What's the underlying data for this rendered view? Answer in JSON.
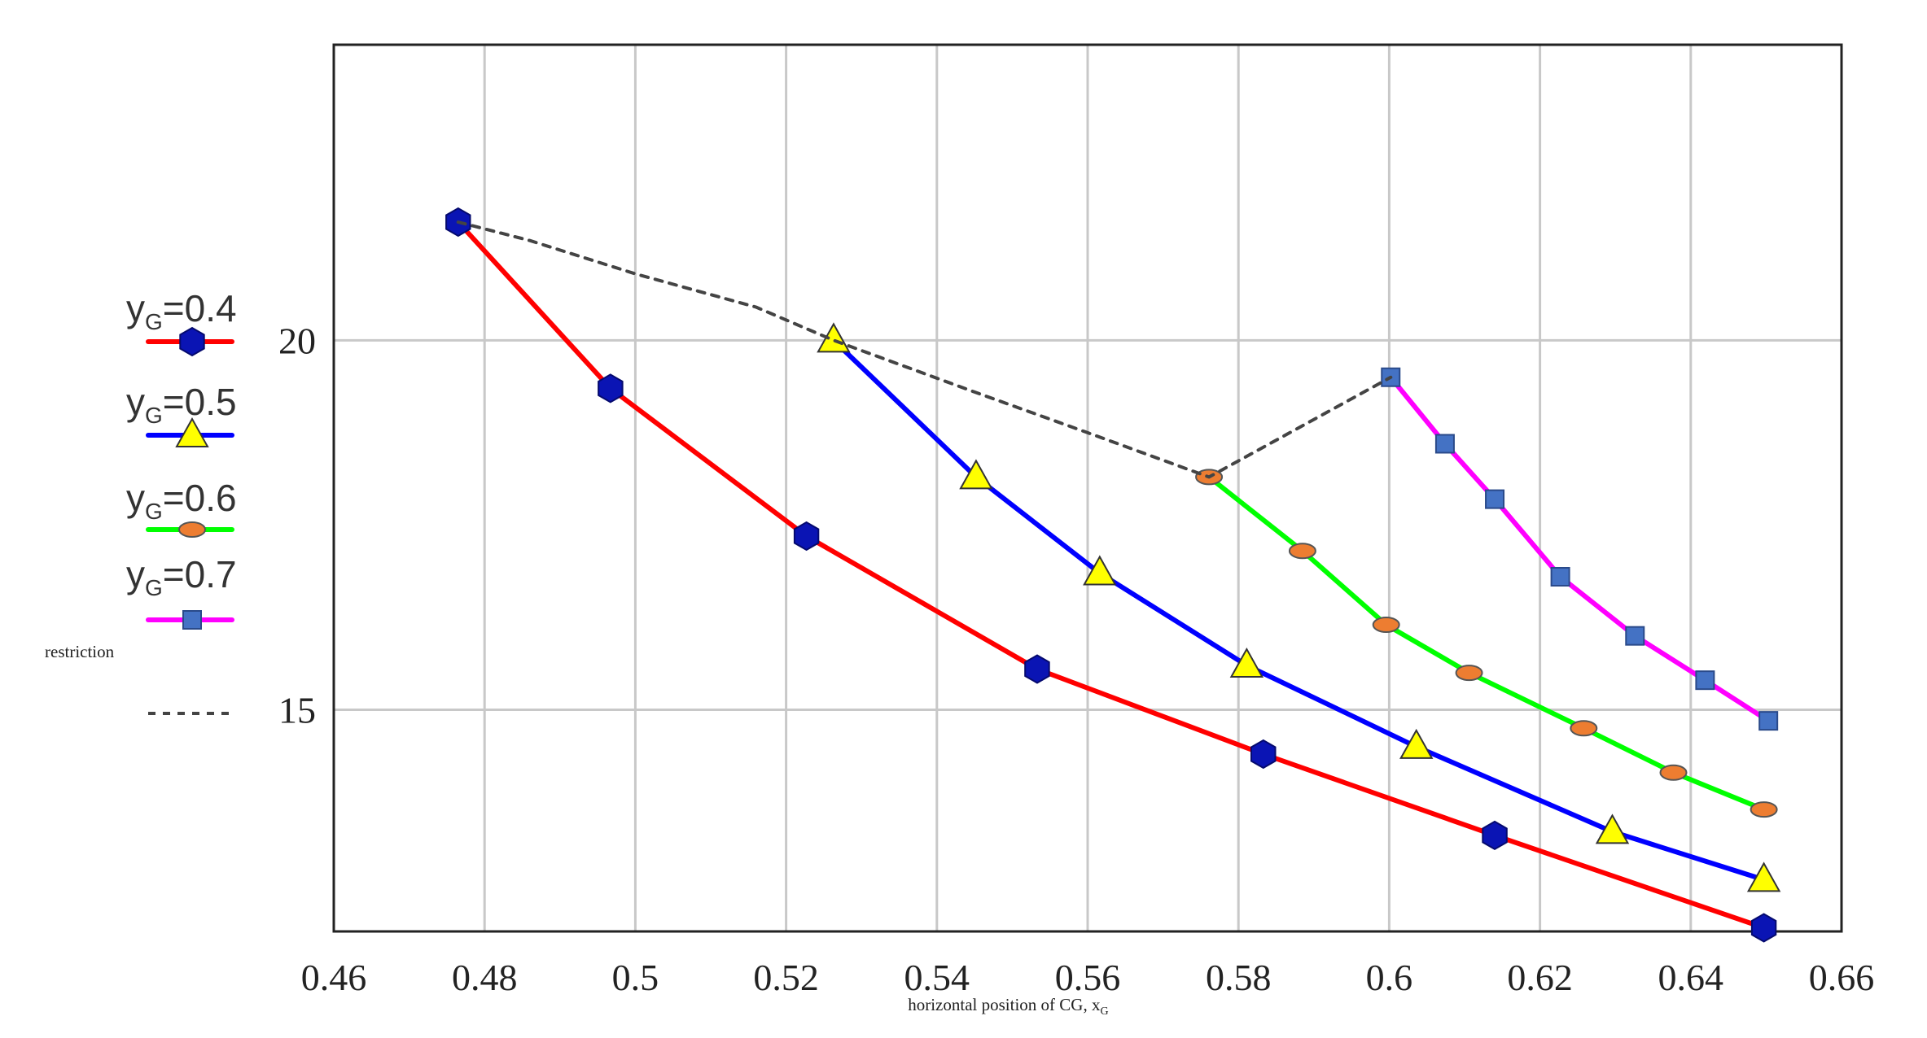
{
  "chart_data": {
    "type": "line",
    "xlabel": "horizontal position of CG, x",
    "xlabel_subscript": "G",
    "ylabel": "",
    "xlim": [
      0.46,
      0.66
    ],
    "ylim": [
      12.0,
      24.0
    ],
    "x_ticks": [
      0.46,
      0.48,
      0.5,
      0.52,
      0.54,
      0.56,
      0.58,
      0.6,
      0.62,
      0.64,
      0.66
    ],
    "x_tick_labels": [
      "0.46",
      "0.48",
      "0.5",
      "0.52",
      "0.54",
      "0.56",
      "0.58",
      "0.6",
      "0.62",
      "0.64",
      "0.66"
    ],
    "y_ticks": [
      15,
      20
    ],
    "y_tick_labels": [
      "15",
      "20"
    ],
    "grid": true,
    "legend_position": "left",
    "series": [
      {
        "name": "y_G=0.4",
        "legend_var": "y",
        "legend_sub": "G",
        "legend_value": "=0.4",
        "color": "#ff0000",
        "marker": "hexagon",
        "marker_color": "#0a14b4",
        "x": [
          0.4765,
          0.4967,
          0.5227,
          0.5533,
          0.5833,
          0.614,
          0.6497
        ],
        "y": [
          21.6,
          19.35,
          17.35,
          15.55,
          14.4,
          13.3,
          12.05
        ]
      },
      {
        "name": "y_G=0.5",
        "legend_var": "y",
        "legend_sub": "G",
        "legend_value": "=0.5",
        "color": "#0000ff",
        "marker": "triangle",
        "marker_color": "#ffff00",
        "x": [
          0.5263,
          0.5452,
          0.5616,
          0.5811,
          0.6036,
          0.6296,
          0.6497
        ],
        "y": [
          20.0,
          18.15,
          16.85,
          15.6,
          14.5,
          13.35,
          12.7
        ]
      },
      {
        "name": "y_G=0.6",
        "legend_var": "y",
        "legend_sub": "G",
        "legend_value": "=0.6",
        "color": "#00ff00",
        "marker": "ellipse",
        "marker_color": "#ed7d31",
        "x": [
          0.5761,
          0.5885,
          0.5996,
          0.6106,
          0.6258,
          0.6377,
          0.6497
        ],
        "y": [
          18.15,
          17.15,
          16.15,
          15.5,
          14.75,
          14.15,
          13.65
        ]
      },
      {
        "name": "y_G=0.7",
        "legend_var": "y",
        "legend_sub": "G",
        "legend_value": "=0.7",
        "color": "#ff00ff",
        "marker": "square",
        "marker_color": "#4472c4",
        "x": [
          0.6002,
          0.6074,
          0.614,
          0.6227,
          0.6326,
          0.6419,
          0.6503
        ],
        "y": [
          19.5,
          18.6,
          17.85,
          16.8,
          16.0,
          15.4,
          14.85
        ]
      },
      {
        "name": "restriction",
        "legend_label": "restriction",
        "color": "#444444",
        "dashed": true,
        "marker": "none",
        "x": [
          0.4765,
          0.486,
          0.5,
          0.516,
          0.5263,
          0.545,
          0.56,
          0.5761,
          0.6002
        ],
        "y": [
          21.6,
          21.35,
          20.9,
          20.45,
          20.0,
          19.3,
          18.75,
          18.15,
          19.5
        ]
      }
    ]
  }
}
